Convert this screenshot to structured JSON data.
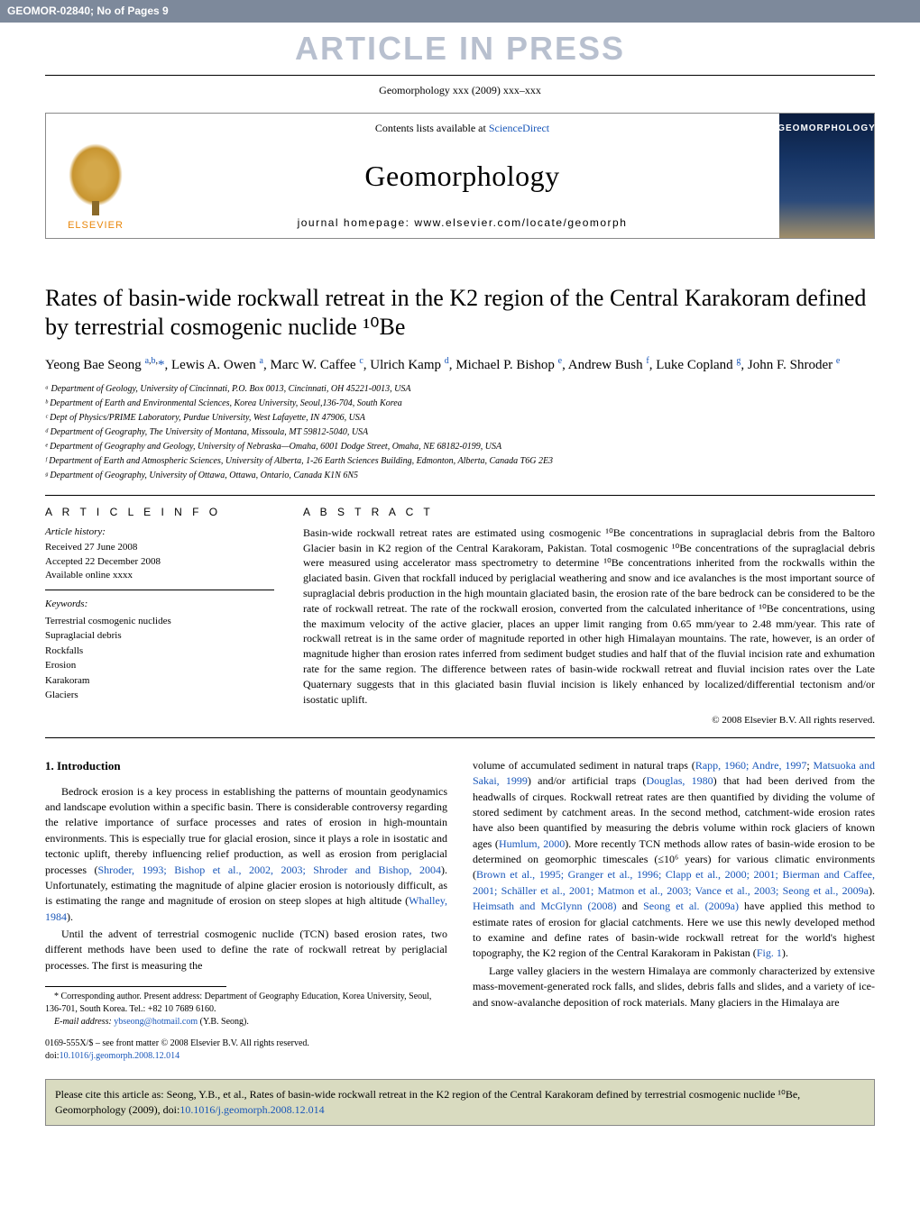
{
  "watermark": {
    "left": "GEOMOR-02840; No of Pages 9",
    "right": "",
    "banner": "ARTICLE IN PRESS"
  },
  "journal_ref": "Geomorphology xxx (2009) xxx–xxx",
  "header": {
    "contents_prefix": "Contents lists available at ",
    "contents_link": "ScienceDirect",
    "journal_name": "Geomorphology",
    "homepage": "journal homepage: www.elsevier.com/locate/geomorph",
    "publisher_label": "ELSEVIER",
    "cover_title": "GEOMORPHOLOGY"
  },
  "title": "Rates of basin-wide rockwall retreat in the K2 region of the Central Karakoram defined by terrestrial cosmogenic nuclide ¹⁰Be",
  "authors_html": "Yeong Bae Seong <sup><a href='#'>a</a>,<a href='#'>b</a>,</sup><a href='#'>*</a>, Lewis A. Owen <sup><a href='#'>a</a></sup>, Marc W. Caffee <sup><a href='#'>c</a></sup>, Ulrich Kamp <sup><a href='#'>d</a></sup>, Michael P. Bishop <sup><a href='#'>e</a></sup>, Andrew Bush <sup><a href='#'>f</a></sup>, Luke Copland <sup><a href='#'>g</a></sup>, John F. Shroder <sup><a href='#'>e</a></sup>",
  "affiliations": [
    "ᵃ Department of Geology, University of Cincinnati, P.O. Box 0013, Cincinnati, OH 45221-0013, USA",
    "ᵇ Department of Earth and Environmental Sciences, Korea University, Seoul,136-704, South Korea",
    "ᶜ Dept of Physics/PRIME Laboratory, Purdue University, West Lafayette, IN 47906, USA",
    "ᵈ Department of Geography, The University of Montana, Missoula, MT 59812-5040, USA",
    "ᵉ Department of Geography and Geology, University of Nebraska—Omaha, 6001 Dodge Street, Omaha, NE 68182-0199, USA",
    "ᶠ Department of Earth and Atmospheric Sciences, University of Alberta, 1-26 Earth Sciences Building, Edmonton, Alberta, Canada T6G 2E3",
    "ᵍ Department of Geography, University of Ottawa, Ottawa, Ontario, Canada K1N 6N5"
  ],
  "article_info": {
    "heading": "A R T I C L E   I N F O",
    "history_head": "Article history:",
    "received": "Received 27 June 2008",
    "accepted": "Accepted 22 December 2008",
    "online": "Available online xxxx",
    "keywords_head": "Keywords:",
    "keywords": [
      "Terrestrial cosmogenic nuclides",
      "Supraglacial debris",
      "Rockfalls",
      "Erosion",
      "Karakoram",
      "Glaciers"
    ]
  },
  "abstract": {
    "heading": "A B S T R A C T",
    "text": "Basin-wide rockwall retreat rates are estimated using cosmogenic ¹⁰Be concentrations in supraglacial debris from the Baltoro Glacier basin in K2 region of the Central Karakoram, Pakistan. Total cosmogenic ¹⁰Be concentrations of the supraglacial debris were measured using accelerator mass spectrometry to determine ¹⁰Be concentrations inherited from the rockwalls within the glaciated basin. Given that rockfall induced by periglacial weathering and snow and ice avalanches is the most important source of supraglacial debris production in the high mountain glaciated basin, the erosion rate of the bare bedrock can be considered to be the rate of rockwall retreat. The rate of the rockwall erosion, converted from the calculated inheritance of ¹⁰Be concentrations, using the maximum velocity of the active glacier, places an upper limit ranging from 0.65 mm/year to 2.48 mm/year. This rate of rockwall retreat is in the same order of magnitude reported in other high Himalayan mountains. The rate, however, is an order of magnitude higher than erosion rates inferred from sediment budget studies and half that of the fluvial incision rate and exhumation rate for the same region. The difference between rates of basin-wide rockwall retreat and fluvial incision rates over the Late Quaternary suggests that in this glaciated basin fluvial incision is likely enhanced by localized/differential tectonism and/or isostatic uplift.",
    "copyright": "© 2008 Elsevier B.V. All rights reserved."
  },
  "body": {
    "section_number": "1.",
    "section_title": "Introduction",
    "left_p1": "Bedrock erosion is a key process in establishing the patterns of mountain geodynamics and landscape evolution within a specific basin. There is considerable controversy regarding the relative importance of surface processes and rates of erosion in high-mountain environments. This is especially true for glacial erosion, since it plays a role in isostatic and tectonic uplift, thereby influencing relief production, as well as erosion from periglacial processes (",
    "left_p1_link": "Shroder, 1993; Bishop et al., 2002, 2003; Shroder and Bishop, 2004",
    "left_p1_end": "). Unfortunately, estimating the magnitude of alpine glacier erosion is notoriously difficult, as is estimating the range and magnitude of erosion on steep slopes at high altitude (",
    "left_p1_link2": "Whalley, 1984",
    "left_p1_end2": ").",
    "left_p2": "Until the advent of terrestrial cosmogenic nuclide (TCN) based erosion rates, two different methods have been used to define the rate of rockwall retreat by periglacial processes. The first is measuring the",
    "right_p1_a": "volume of accumulated sediment in natural traps (",
    "right_p1_link1": "Rapp, 1960; Andre, 1997",
    "right_p1_b": "; ",
    "right_p1_link2": "Matsuoka and Sakai, 1999",
    "right_p1_c": ") and/or artificial traps (",
    "right_p1_link3": "Douglas, 1980",
    "right_p1_d": ") that had been derived from the headwalls of cirques. Rockwall retreat rates are then quantified by dividing the volume of stored sediment by catchment areas. In the second method, catchment-wide erosion rates have also been quantified by measuring the debris volume within rock glaciers of known ages (",
    "right_p1_link4": "Humlum, 2000",
    "right_p1_e": "). More recently TCN methods allow rates of basin-wide erosion to be determined on geomorphic timescales (≤10⁶ years) for various climatic environments (",
    "right_p1_link5": "Brown et al., 1995; Granger et al., 1996; Clapp et al., 2000; 2001; Bierman and Caffee, 2001; Schäller et al., 2001; Matmon et al., 2003; Vance et al., 2003; Seong et al., 2009a",
    "right_p1_f": "). ",
    "right_p1_link6": "Heimsath and McGlynn (2008)",
    "right_p1_g": " and ",
    "right_p1_link7": "Seong et al. (2009a)",
    "right_p1_h": " have applied this method to estimate rates of erosion for glacial catchments. Here we use this newly developed method to examine and define rates of basin-wide rockwall retreat for the world's highest topography, the K2 region of the Central Karakoram in Pakistan (",
    "right_p1_link8": "Fig. 1",
    "right_p1_i": ").",
    "right_p2": "Large valley glaciers in the western Himalaya are commonly characterized by extensive mass-movement-generated rock falls, and slides, debris falls and slides, and a variety of ice- and snow-avalanche deposition of rock materials. Many glaciers in the Himalaya are"
  },
  "footnote": {
    "corr": "* Corresponding author. Present address: Department of Geography Education, Korea University, Seoul, 136-701, South Korea. Tel.: +82 10 7689 6160.",
    "email_label": "E-mail address: ",
    "email": "ybseong@hotmail.com",
    "email_who": " (Y.B. Seong)."
  },
  "bottom": {
    "line1": "0169-555X/$ – see front matter © 2008 Elsevier B.V. All rights reserved.",
    "doi_label": "doi:",
    "doi": "10.1016/j.geomorph.2008.12.014"
  },
  "cite": {
    "text_a": "Please cite this article as: Seong, Y.B., et al., Rates of basin-wide rockwall retreat in the K2 region of the Central Karakoram defined by terrestrial cosmogenic nuclide ¹⁰Be, Geomorphology (2009), doi:",
    "doi": "10.1016/j.geomorph.2008.12.014"
  },
  "colors": {
    "bar_bg": "#7d899b",
    "watermark_text": "#b8c0cf",
    "link": "#1856b9",
    "cite_bg": "#d9dbc0",
    "elsevier_orange": "#e8860a"
  }
}
